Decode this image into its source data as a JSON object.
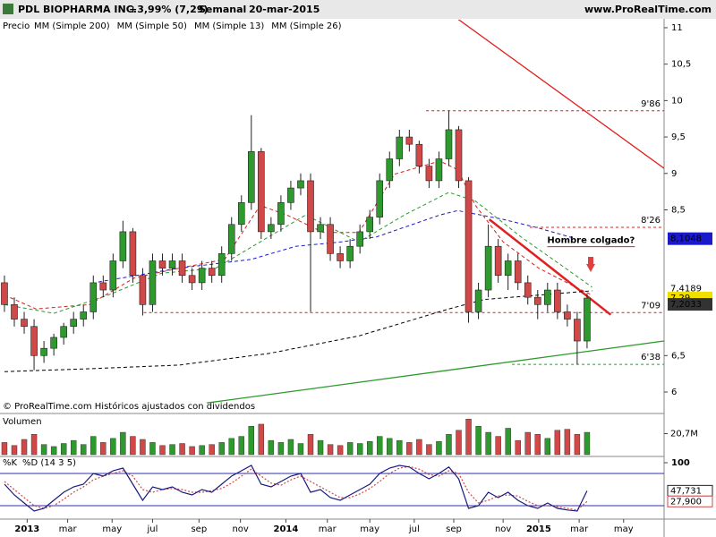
{
  "chart_data": {
    "type": "candlestick",
    "title": "PDL BIOPHARMA INC.",
    "change": "+3,99% (7,29)",
    "period": "Semanal",
    "date": "20-mar-2015",
    "source": "www.ProRealTime.com",
    "price_legend": "Precio",
    "footer": "© ProRealTime.com Históricos ajustados con dividendos",
    "up_color": "#2e9a2e",
    "down_color": "#d04848",
    "xlim": [
      -0.45,
      66.8
    ],
    "xticks": [
      {
        "value": 2.3,
        "label": "2013"
      },
      {
        "value": 6.4,
        "label": "mar"
      },
      {
        "value": 10.9,
        "label": "may"
      },
      {
        "value": 15,
        "label": "jul"
      },
      {
        "value": 19.7,
        "label": "sep"
      },
      {
        "value": 23.9,
        "label": "nov"
      },
      {
        "value": 28.5,
        "label": "2014"
      },
      {
        "value": 32.7,
        "label": "mar"
      },
      {
        "value": 37,
        "label": "may"
      },
      {
        "value": 41.5,
        "label": "jul"
      },
      {
        "value": 45.5,
        "label": "sep"
      },
      {
        "value": 50.5,
        "label": "nov"
      },
      {
        "value": 54.1,
        "label": "2015"
      },
      {
        "value": 58.2,
        "label": "mar"
      },
      {
        "value": 62.7,
        "label": "may"
      }
    ],
    "ylim": [
      5.73,
      11.11
    ],
    "yticks": [
      11,
      {
        "value": 10.5,
        "label": "10,5"
      },
      10,
      {
        "value": 9.5,
        "label": "9,5"
      },
      9,
      {
        "value": 8.5,
        "label": "8,5"
      },
      {
        "value": 6.5,
        "label": "6,5"
      },
      6
    ],
    "ohlc": {
      "open": [
        7.5,
        7.2,
        7.0,
        6.9,
        6.5,
        6.6,
        6.75,
        6.9,
        7.0,
        7.1,
        7.5,
        7.4,
        7.8,
        8.2,
        7.6,
        7.2,
        7.8,
        7.7,
        7.8,
        7.6,
        7.5,
        7.7,
        7.6,
        7.9,
        8.3,
        8.6,
        9.3,
        8.2,
        8.3,
        8.6,
        8.8,
        8.9,
        8.2,
        8.3,
        7.9,
        7.8,
        8.0,
        8.2,
        8.4,
        8.9,
        9.2,
        9.5,
        9.4,
        9.1,
        8.9,
        9.2,
        9.6,
        8.9,
        7.1,
        7.4,
        8.0,
        7.6,
        7.8,
        7.5,
        7.3,
        7.2,
        7.4,
        7.1,
        7.0,
        6.7
      ],
      "high": [
        7.6,
        7.3,
        7.1,
        7.0,
        6.7,
        6.8,
        6.95,
        7.1,
        7.2,
        7.6,
        7.6,
        7.9,
        8.35,
        8.25,
        7.7,
        7.9,
        7.9,
        7.9,
        7.9,
        7.7,
        7.8,
        7.8,
        8.0,
        8.4,
        8.7,
        9.8,
        9.35,
        8.4,
        8.7,
        8.9,
        9.0,
        9.0,
        8.4,
        8.4,
        8.0,
        8.1,
        8.3,
        8.5,
        9.0,
        9.3,
        9.6,
        9.6,
        9.45,
        9.2,
        9.3,
        9.86,
        9.65,
        8.95,
        7.5,
        8.3,
        8.1,
        7.9,
        7.9,
        7.6,
        7.4,
        7.5,
        7.5,
        7.2,
        7.1,
        7.35
      ],
      "low": [
        7.1,
        6.9,
        6.8,
        6.3,
        6.4,
        6.5,
        6.65,
        6.8,
        6.9,
        7.0,
        7.3,
        7.3,
        7.7,
        7.5,
        7.05,
        7.1,
        7.6,
        7.6,
        7.5,
        7.4,
        7.4,
        7.5,
        7.5,
        7.8,
        8.2,
        8.5,
        8.1,
        8.1,
        8.2,
        8.5,
        8.7,
        7.1,
        8.1,
        7.8,
        7.7,
        7.7,
        7.9,
        8.1,
        8.3,
        8.8,
        9.1,
        9.3,
        9.0,
        8.8,
        8.8,
        9.1,
        8.8,
        6.95,
        7.0,
        7.3,
        7.5,
        7.4,
        7.4,
        7.2,
        7.0,
        7.1,
        7.0,
        6.9,
        6.38,
        6.6
      ],
      "close": [
        7.2,
        7.0,
        6.9,
        6.5,
        6.6,
        6.75,
        6.9,
        7.0,
        7.1,
        7.5,
        7.4,
        7.8,
        8.2,
        7.6,
        7.2,
        7.8,
        7.7,
        7.8,
        7.6,
        7.5,
        7.7,
        7.6,
        7.9,
        8.3,
        8.6,
        9.3,
        8.2,
        8.3,
        8.6,
        8.8,
        8.9,
        8.2,
        8.3,
        7.9,
        7.8,
        8.0,
        8.2,
        8.4,
        8.9,
        9.2,
        9.5,
        9.4,
        9.1,
        8.9,
        9.2,
        9.6,
        8.9,
        7.1,
        7.4,
        8.0,
        7.6,
        7.8,
        7.5,
        7.3,
        7.2,
        7.4,
        7.1,
        7.0,
        6.7,
        7.29
      ]
    },
    "moving_averages": [
      {
        "name": "MM (Simple 200)",
        "color": "#000000",
        "x": [
          0,
          8.6,
          17.7,
          26.8,
          35.9,
          45,
          48.6,
          54.1,
          59.5
        ],
        "values": [
          6.28,
          6.32,
          6.37,
          6.53,
          6.77,
          7.14,
          7.27,
          7.33,
          7.39
        ]
      },
      {
        "name": "MM (Simple 50)",
        "color": "#1a1acc",
        "x": [
          9.5,
          17.7,
          25,
          29.5,
          34.1,
          37.7,
          44.1,
          45.9,
          50.5,
          54.1,
          57.7
        ],
        "values": [
          7.51,
          7.7,
          7.82,
          8.0,
          8.06,
          8.13,
          8.43,
          8.49,
          8.37,
          8.25,
          8.11
        ]
      },
      {
        "name": "MM (Simple 13)",
        "color": "#d42020",
        "x": [
          0,
          3.2,
          8.6,
          13.2,
          17.7,
          22.3,
          25.9,
          28.6,
          32.3,
          35.9,
          39.5,
          44.1,
          45.9,
          47.7,
          50.5,
          54.1,
          57.7,
          59.5
        ],
        "values": [
          7.33,
          7.14,
          7.2,
          7.57,
          7.7,
          7.82,
          8.56,
          8.43,
          8.19,
          8.19,
          8.99,
          9.17,
          9.05,
          8.56,
          8.06,
          7.7,
          7.45,
          7.33
        ]
      },
      {
        "name": "MM (Simple 26)",
        "color": "#2a9a2a",
        "x": [
          0,
          5,
          10.5,
          15.9,
          21.4,
          25.9,
          30.5,
          35.9,
          40.5,
          45,
          47.7,
          52.3,
          56.8,
          59.5
        ],
        "values": [
          7.2,
          7.08,
          7.33,
          7.63,
          7.7,
          8.06,
          8.43,
          8.06,
          8.43,
          8.74,
          8.62,
          8.13,
          7.7,
          7.44
        ]
      }
    ],
    "levels": [
      {
        "value": 9.86,
        "label": "9'86",
        "color": "#d42020",
        "x": [
          42.7,
          66.8
        ]
      },
      {
        "value": 8.26,
        "label": "8'26",
        "color": "#d42020",
        "x": [
          53.2,
          66.8
        ]
      },
      {
        "value": 7.09,
        "label": "7'09",
        "color": "#d42020",
        "x": [
          14.1,
          66.8
        ]
      },
      {
        "value": 6.38,
        "label": "6'38",
        "color": "#2a9a2a",
        "x": [
          51.4,
          66.8
        ]
      }
    ],
    "trendlines": [
      {
        "color": "#e02020",
        "x": [
          45.5,
          66.8
        ],
        "values": [
          11.16,
          9.07
        ]
      },
      {
        "color": "#2a9a2a",
        "x": [
          20.5,
          66.8
        ],
        "values": [
          5.85,
          6.7
        ]
      },
      {
        "color": "#e02020",
        "x": [
          49.1,
          61.4
        ],
        "values": [
          8.37,
          7.06
        ]
      }
    ],
    "annotation": {
      "text": "Hombre colgado?",
      "x": 59.4,
      "value": 8.08,
      "color": "#e02020"
    },
    "price_labels": [
      {
        "value": 8.1048,
        "label": "8,1048",
        "color": "#1a1acc",
        "boxed": true
      },
      {
        "value": 7.4189,
        "label": "7,4189",
        "color": "#2a9a2a",
        "boxed": false
      },
      {
        "value": 7.29,
        "label": "7,29",
        "color": "#f0e000",
        "boxed": true
      },
      {
        "value": 7.2033,
        "label": "7,2033",
        "color": "#333333",
        "boxed": true
      }
    ],
    "volume": {
      "title": "Volumen",
      "ylim": [
        0,
        37
      ],
      "yticks": [
        {
          "value": 20.7,
          "label": "20,7M"
        }
      ],
      "values": [
        12,
        9,
        15,
        20,
        10,
        8,
        11,
        14,
        10,
        18,
        12,
        16,
        22,
        18,
        15,
        12,
        9,
        10,
        11,
        8,
        9,
        10,
        12,
        16,
        18,
        28,
        30,
        14,
        12,
        15,
        11,
        20,
        14,
        10,
        9,
        12,
        11,
        13,
        18,
        16,
        14,
        12,
        15,
        10,
        13,
        20,
        24,
        35,
        28,
        22,
        18,
        26,
        14,
        22,
        20,
        16,
        24,
        25,
        20,
        22
      ]
    },
    "stochastic": {
      "k_name": "%K",
      "d_name": "%D (14 3 5)",
      "k_color": "#1a1a80",
      "d_color": "#d04848",
      "ylim": [
        0,
        100
      ],
      "yticks": [
        100
      ],
      "levels": [
        80,
        20
      ],
      "k_label": {
        "value": 47.731,
        "label": "47,731"
      },
      "d_label": {
        "value": 27.9,
        "label": "27,900"
      },
      "k_values": [
        60,
        40,
        25,
        10,
        15,
        30,
        45,
        55,
        60,
        80,
        75,
        85,
        90,
        60,
        30,
        55,
        50,
        55,
        45,
        40,
        50,
        45,
        60,
        75,
        85,
        95,
        60,
        55,
        65,
        75,
        80,
        45,
        50,
        35,
        30,
        40,
        50,
        60,
        80,
        90,
        95,
        92,
        80,
        70,
        80,
        92,
        70,
        15,
        20,
        45,
        35,
        45,
        30,
        20,
        15,
        25,
        15,
        12,
        10,
        47.731
      ],
      "d_values": [
        65,
        50,
        35,
        20,
        15,
        20,
        32,
        45,
        55,
        68,
        75,
        80,
        85,
        75,
        50,
        45,
        50,
        52,
        50,
        45,
        45,
        48,
        52,
        62,
        75,
        88,
        75,
        62,
        58,
        68,
        75,
        65,
        55,
        45,
        35,
        35,
        42,
        52,
        65,
        80,
        90,
        93,
        88,
        78,
        75,
        85,
        80,
        45,
        25,
        30,
        38,
        40,
        38,
        28,
        20,
        20,
        18,
        15,
        12,
        27.9
      ]
    }
  }
}
